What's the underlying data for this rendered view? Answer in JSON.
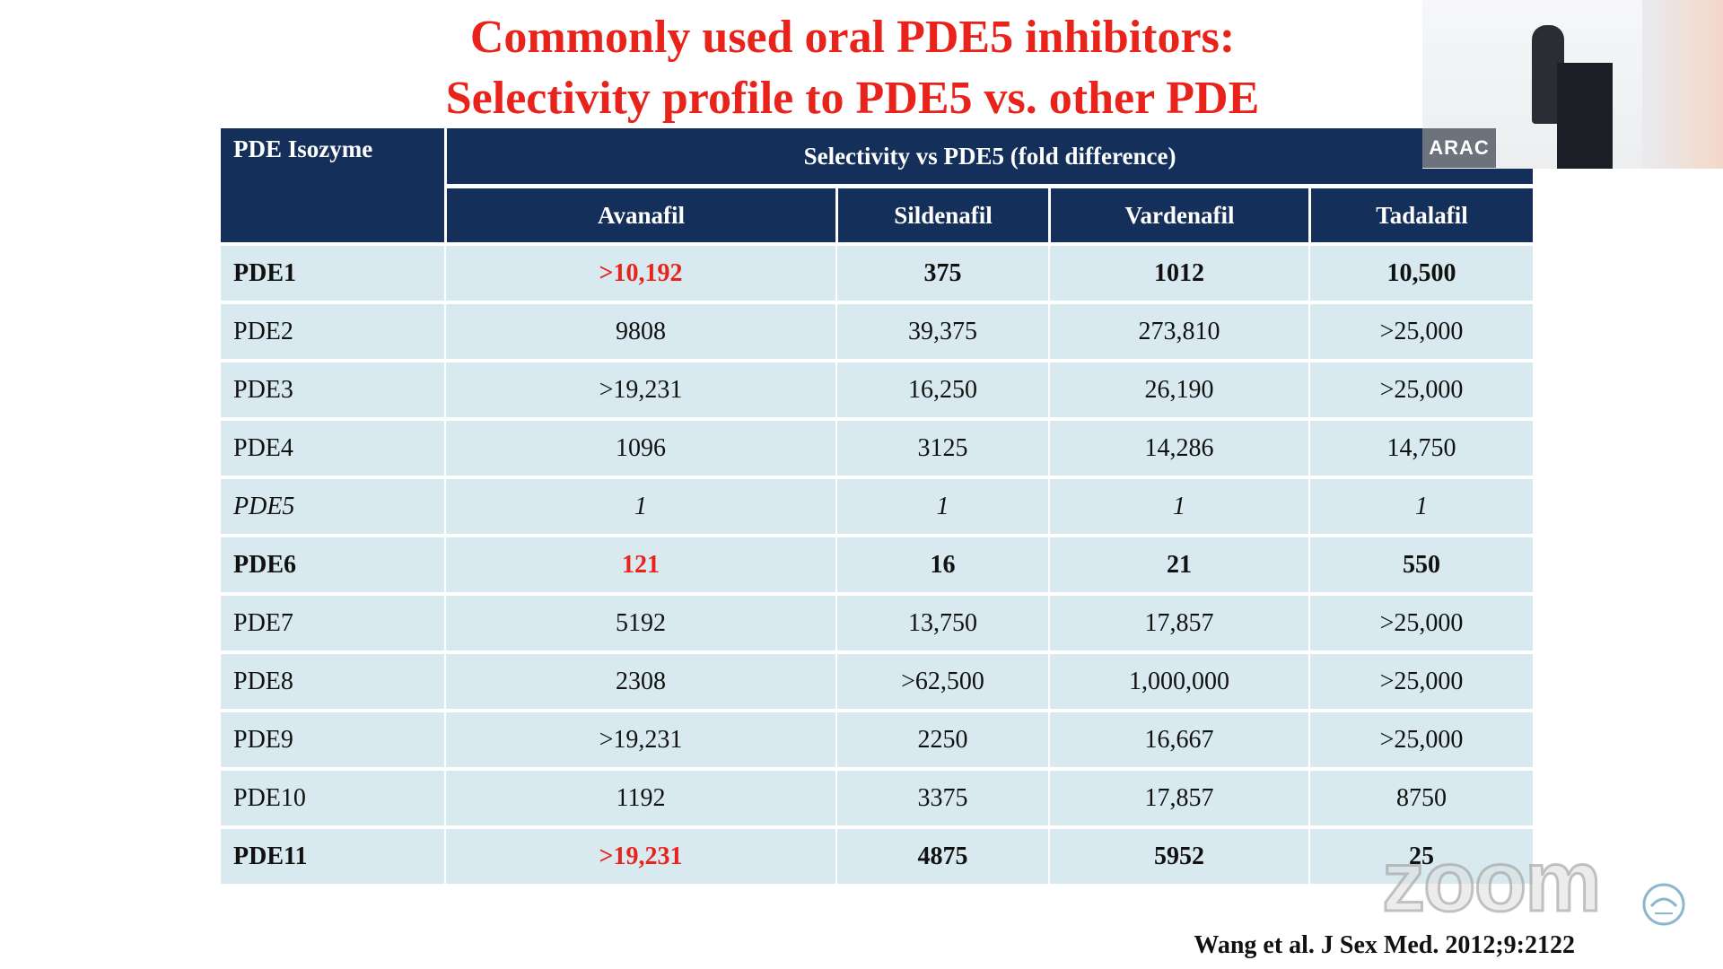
{
  "slide": {
    "title_line1": "Commonly used oral PDE5 inhibitors:",
    "title_line2": "Selectivity profile to PDE5 vs. other PDE",
    "citation": "Wang et al. J Sex Med. 2012;9:2122",
    "accent_color": "#e8231b",
    "header_color": "#14305a"
  },
  "table": {
    "first_header": "PDE Isozyme",
    "group_header": "Selectivity vs PDE5 (fold difference)",
    "columns": [
      "Avanafil",
      "Sildenafil",
      "Vardenafil",
      "Tadalafil"
    ],
    "rows": [
      {
        "name": "PDE1",
        "values": [
          ">10,192",
          "375",
          "1012",
          "10,500"
        ],
        "style": "bold",
        "red_first": true
      },
      {
        "name": "PDE2",
        "values": [
          "9808",
          "39,375",
          "273,810",
          ">25,000"
        ],
        "style": "normal",
        "red_first": false
      },
      {
        "name": "PDE3",
        "values": [
          ">19,231",
          "16,250",
          "26,190",
          ">25,000"
        ],
        "style": "normal",
        "red_first": false
      },
      {
        "name": "PDE4",
        "values": [
          "1096",
          "3125",
          "14,286",
          "14,750"
        ],
        "style": "normal",
        "red_first": false
      },
      {
        "name": "PDE5",
        "values": [
          "1",
          "1",
          "1",
          "1"
        ],
        "style": "italic",
        "red_first": false
      },
      {
        "name": "PDE6",
        "values": [
          "121",
          "16",
          "21",
          "550"
        ],
        "style": "bold",
        "red_first": true
      },
      {
        "name": "PDE7",
        "values": [
          "5192",
          "13,750",
          "17,857",
          ">25,000"
        ],
        "style": "normal",
        "red_first": false
      },
      {
        "name": "PDE8",
        "values": [
          "2308",
          ">62,500",
          "1,000,000",
          ">25,000"
        ],
        "style": "normal",
        "red_first": false
      },
      {
        "name": "PDE9",
        "values": [
          ">19,231",
          "2250",
          "16,667",
          ">25,000"
        ],
        "style": "normal",
        "red_first": false
      },
      {
        "name": "PDE10",
        "values": [
          "1192",
          "3375",
          "17,857",
          "8750"
        ],
        "style": "normal",
        "red_first": false
      },
      {
        "name": "PDE11",
        "values": [
          ">19,231",
          "4875",
          "5952",
          "25"
        ],
        "style": "bold",
        "red_first": true
      }
    ]
  },
  "video_thumbnail": {
    "label": "ARAC"
  },
  "watermark": {
    "text": "zoom"
  }
}
